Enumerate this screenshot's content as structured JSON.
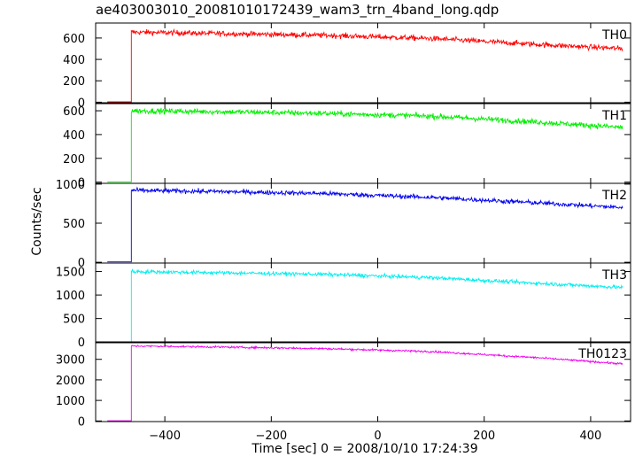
{
  "chart_data": {
    "type": "line",
    "title": "ae403003010_20081010172439_wam3_trn_4band_long.qdp",
    "xlabel": "Time [sec] 0 = 2008/10/10 17:24:39",
    "ylabel": "Counts/sec",
    "xlim": [
      -530,
      475
    ],
    "x_ticks": [
      -400,
      -200,
      0,
      200,
      400
    ],
    "x_tick_labels": [
      "−400",
      "−200",
      "0",
      "200",
      "400"
    ],
    "onset_x": -463,
    "x_start": -508,
    "x_end": 460,
    "series": [
      {
        "name": "TH0",
        "color": "#ff0000",
        "ylim": [
          -5,
          740
        ],
        "y_ticks": [
          0,
          200,
          400,
          600
        ],
        "pre_level": 3,
        "knots_x": [
          -463,
          -300,
          -100,
          100,
          300,
          460
        ],
        "knots_y": [
          655,
          642,
          625,
          595,
          540,
          500
        ],
        "noise": 24
      },
      {
        "name": "TH1",
        "color": "#00ee00",
        "ylim": [
          -10,
          660
        ],
        "y_ticks": [
          0,
          200,
          400,
          600
        ],
        "pre_level": 3,
        "knots_x": [
          -463,
          -300,
          -100,
          100,
          300,
          460
        ],
        "knots_y": [
          600,
          592,
          578,
          555,
          505,
          460
        ],
        "noise": 22
      },
      {
        "name": "TH2",
        "color": "#0000ee",
        "ylim": [
          -10,
          1010
        ],
        "y_ticks": [
          0,
          500,
          1000
        ],
        "pre_level": 5,
        "knots_x": [
          -463,
          -300,
          -100,
          100,
          300,
          460
        ],
        "knots_y": [
          920,
          905,
          880,
          830,
          760,
          700
        ],
        "noise": 28
      },
      {
        "name": "TH3",
        "color": "#00eeee",
        "ylim": [
          -15,
          1680
        ],
        "y_ticks": [
          0,
          500,
          1000,
          1500
        ],
        "pre_level": 5,
        "knots_x": [
          -463,
          -300,
          -100,
          100,
          300,
          460
        ],
        "knots_y": [
          1500,
          1475,
          1440,
          1370,
          1250,
          1160
        ],
        "noise": 38
      },
      {
        "name": "TH0123",
        "color": "#ee00ee",
        "ylim": [
          -30,
          3850
        ],
        "y_ticks": [
          0,
          1000,
          2000,
          3000
        ],
        "pre_level": 10,
        "knots_x": [
          -463,
          -300,
          -100,
          100,
          300,
          460
        ],
        "knots_y": [
          3650,
          3600,
          3520,
          3380,
          3080,
          2780
        ],
        "noise": 45
      }
    ],
    "y_tick_labels": [
      [
        "0",
        "200",
        "400",
        "600"
      ],
      [
        "0",
        "200",
        "400",
        "600"
      ],
      [
        "0",
        "500",
        "1000"
      ],
      [
        "0",
        "500",
        "1000",
        "1500"
      ],
      [
        "0",
        "1000",
        "2000",
        "3000"
      ]
    ]
  }
}
